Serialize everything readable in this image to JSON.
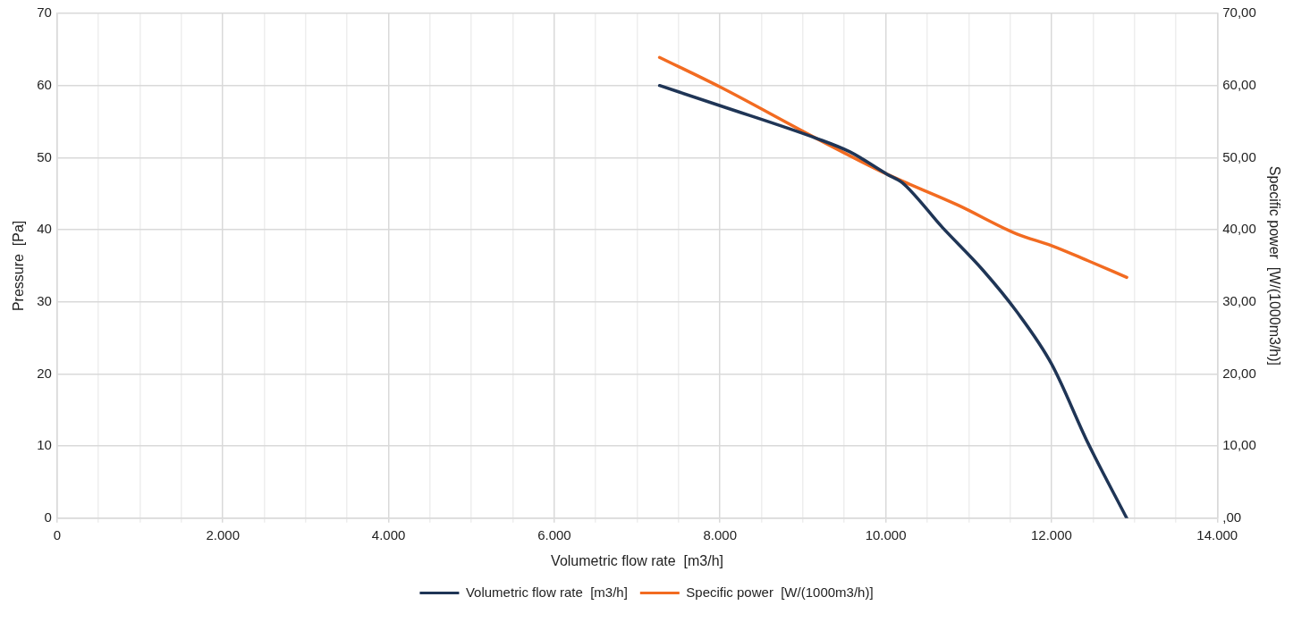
{
  "chart_data": {
    "type": "line",
    "xlabel": "Volumetric flow rate  [m3/h]",
    "ylabel": "Pressure  [Pa]",
    "y2label": "Specific power  [W/(1000m3/h)]",
    "xlim": [
      0,
      14000
    ],
    "xticks": [
      0,
      {
        "value": 500,
        "label": null
      },
      {
        "value": 1000,
        "label": null
      },
      {
        "value": 1500,
        "label": null
      },
      {
        "value": 2000,
        "label": "2.000"
      },
      {
        "value": 2500,
        "label": null
      },
      {
        "value": 3000,
        "label": null
      },
      {
        "value": 3500,
        "label": null
      },
      {
        "value": 4000,
        "label": "4.000"
      },
      {
        "value": 4500,
        "label": null
      },
      {
        "value": 5000,
        "label": null
      },
      {
        "value": 5500,
        "label": null
      },
      {
        "value": 6000,
        "label": "6.000"
      },
      {
        "value": 6500,
        "label": null
      },
      {
        "value": 7000,
        "label": null
      },
      {
        "value": 7500,
        "label": null
      },
      {
        "value": 8000,
        "label": "8.000"
      },
      {
        "value": 8500,
        "label": null
      },
      {
        "value": 9000,
        "label": null
      },
      {
        "value": 9500,
        "label": null
      },
      {
        "value": 10000,
        "label": "10.000"
      },
      {
        "value": 10500,
        "label": null
      },
      {
        "value": 11000,
        "label": null
      },
      {
        "value": 11500,
        "label": null
      },
      {
        "value": 12000,
        "label": "12.000"
      },
      {
        "value": 12500,
        "label": null
      },
      {
        "value": 13000,
        "label": null
      },
      {
        "value": 13500,
        "label": null
      },
      {
        "value": 14000,
        "label": "14.000"
      }
    ],
    "ylim": [
      0,
      70
    ],
    "yticks": [
      0,
      10,
      20,
      30,
      40,
      50,
      60,
      70
    ],
    "y2lim": [
      0,
      70
    ],
    "y2ticks": [
      {
        "value": 0,
        "label": ",00"
      },
      {
        "value": 10,
        "label": "10,00"
      },
      {
        "value": 20,
        "label": "20,00"
      },
      {
        "value": 30,
        "label": "30,00"
      },
      {
        "value": 40,
        "label": "40,00"
      },
      {
        "value": 50,
        "label": "50,00"
      },
      {
        "value": 60,
        "label": "60,00"
      },
      {
        "value": 70,
        "label": "70,00"
      }
    ],
    "grid": true,
    "legend": "bottom",
    "marker": "none",
    "line_style": "solid",
    "series": [
      {
        "name": "Volumetric flow rate  [m3/h]",
        "color": "#1f3556",
        "x": [
          7270,
          8000,
          9157,
          9567,
          10015,
          10202,
          10685,
          11172,
          11583,
          12000,
          12441,
          12908
        ],
        "values": [
          60,
          57.2,
          52.7,
          50.8,
          47.7,
          46.5,
          40.3,
          34.4,
          28.6,
          21.4,
          10.4,
          0
        ]
      },
      {
        "name": "Specific power  [W/(1000m3/h)]",
        "color": "#f26b21",
        "axis": "y2",
        "x": [
          7270,
          8000,
          9157,
          10015,
          10874,
          11583,
          12000,
          12441,
          12908
        ],
        "values": [
          63.9,
          59.8,
          52.7,
          47.7,
          43.4,
          39.4,
          37.8,
          35.7,
          33.4
        ]
      }
    ]
  }
}
